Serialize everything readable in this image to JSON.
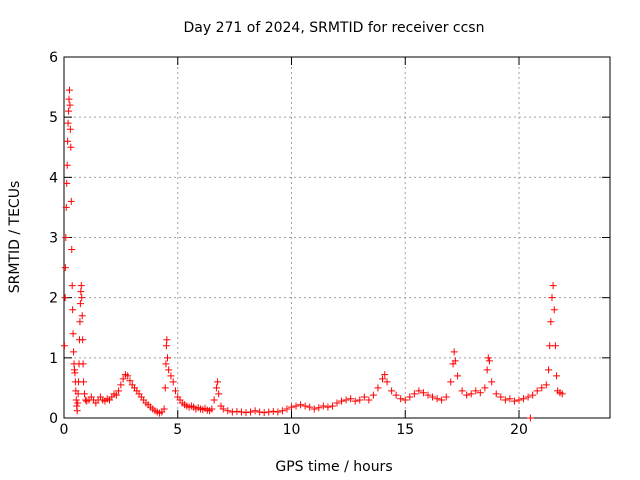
{
  "chart_data": {
    "type": "scatter",
    "title": "Day 271 of 2024, SRMTID for receiver ccsn",
    "xlabel": "GPS time / hours",
    "ylabel": "SRMTID / TECUs",
    "xlim": [
      0,
      24
    ],
    "ylim": [
      0,
      6
    ],
    "xticks": [
      0,
      5,
      10,
      15,
      20
    ],
    "yticks": [
      0,
      1,
      2,
      3,
      4,
      5,
      6
    ],
    "xtick_labels": [
      "0",
      "5",
      "10",
      "15",
      "20"
    ],
    "ytick_labels": [
      "0",
      "1",
      "2",
      "3",
      "4",
      "5",
      "6"
    ],
    "grid": true,
    "marker": "+",
    "series": [
      {
        "name": "SRMTID",
        "color": "#ff0000",
        "points": [
          [
            0.02,
            1.2
          ],
          [
            0.05,
            2.0
          ],
          [
            0.06,
            2.5
          ],
          [
            0.08,
            3.0
          ],
          [
            0.1,
            3.5
          ],
          [
            0.12,
            3.9
          ],
          [
            0.14,
            4.2
          ],
          [
            0.16,
            4.6
          ],
          [
            0.18,
            4.9
          ],
          [
            0.2,
            5.1
          ],
          [
            0.22,
            5.3
          ],
          [
            0.24,
            5.45
          ],
          [
            0.26,
            5.2
          ],
          [
            0.28,
            4.8
          ],
          [
            0.3,
            4.5
          ],
          [
            0.32,
            3.6
          ],
          [
            0.34,
            2.8
          ],
          [
            0.36,
            2.2
          ],
          [
            0.38,
            1.8
          ],
          [
            0.4,
            1.4
          ],
          [
            0.42,
            1.1
          ],
          [
            0.44,
            0.9
          ],
          [
            0.46,
            0.8
          ],
          [
            0.48,
            0.75
          ],
          [
            0.5,
            0.6
          ],
          [
            0.52,
            0.45
          ],
          [
            0.54,
            0.3
          ],
          [
            0.56,
            0.2
          ],
          [
            0.58,
            0.12
          ],
          [
            0.6,
            0.25
          ],
          [
            0.62,
            0.4
          ],
          [
            0.64,
            0.6
          ],
          [
            0.66,
            0.9
          ],
          [
            0.68,
            1.3
          ],
          [
            0.7,
            1.6
          ],
          [
            0.72,
            1.9
          ],
          [
            0.74,
            2.1
          ],
          [
            0.76,
            2.2
          ],
          [
            0.78,
            2.0
          ],
          [
            0.8,
            1.7
          ],
          [
            0.82,
            1.3
          ],
          [
            0.84,
            0.9
          ],
          [
            0.86,
            0.6
          ],
          [
            0.9,
            0.4
          ],
          [
            0.95,
            0.3
          ],
          [
            1.0,
            0.28
          ],
          [
            1.1,
            0.3
          ],
          [
            1.2,
            0.35
          ],
          [
            1.3,
            0.3
          ],
          [
            1.4,
            0.25
          ],
          [
            1.5,
            0.3
          ],
          [
            1.6,
            0.35
          ],
          [
            1.7,
            0.3
          ],
          [
            1.8,
            0.28
          ],
          [
            1.9,
            0.32
          ],
          [
            2.0,
            0.3
          ],
          [
            2.1,
            0.35
          ],
          [
            2.2,
            0.4
          ],
          [
            2.3,
            0.38
          ],
          [
            2.4,
            0.45
          ],
          [
            2.5,
            0.55
          ],
          [
            2.6,
            0.65
          ],
          [
            2.7,
            0.72
          ],
          [
            2.8,
            0.7
          ],
          [
            2.9,
            0.62
          ],
          [
            3.0,
            0.55
          ],
          [
            3.1,
            0.5
          ],
          [
            3.2,
            0.45
          ],
          [
            3.3,
            0.4
          ],
          [
            3.4,
            0.35
          ],
          [
            3.5,
            0.3
          ],
          [
            3.6,
            0.25
          ],
          [
            3.7,
            0.22
          ],
          [
            3.8,
            0.18
          ],
          [
            3.9,
            0.15
          ],
          [
            4.0,
            0.12
          ],
          [
            4.1,
            0.1
          ],
          [
            4.2,
            0.08
          ],
          [
            4.3,
            0.1
          ],
          [
            4.4,
            0.15
          ],
          [
            4.45,
            0.5
          ],
          [
            4.48,
            0.9
          ],
          [
            4.5,
            1.2
          ],
          [
            4.52,
            1.3
          ],
          [
            4.55,
            1.0
          ],
          [
            4.6,
            0.8
          ],
          [
            4.7,
            0.7
          ],
          [
            4.8,
            0.6
          ],
          [
            4.9,
            0.45
          ],
          [
            5.0,
            0.35
          ],
          [
            5.1,
            0.3
          ],
          [
            5.2,
            0.25
          ],
          [
            5.3,
            0.22
          ],
          [
            5.4,
            0.2
          ],
          [
            5.5,
            0.18
          ],
          [
            5.6,
            0.2
          ],
          [
            5.7,
            0.18
          ],
          [
            5.8,
            0.15
          ],
          [
            5.9,
            0.17
          ],
          [
            6.0,
            0.15
          ],
          [
            6.1,
            0.14
          ],
          [
            6.2,
            0.16
          ],
          [
            6.3,
            0.13
          ],
          [
            6.4,
            0.12
          ],
          [
            6.5,
            0.15
          ],
          [
            6.6,
            0.3
          ],
          [
            6.7,
            0.5
          ],
          [
            6.75,
            0.6
          ],
          [
            6.8,
            0.4
          ],
          [
            6.9,
            0.2
          ],
          [
            7.0,
            0.15
          ],
          [
            7.2,
            0.12
          ],
          [
            7.4,
            0.1
          ],
          [
            7.6,
            0.11
          ],
          [
            7.8,
            0.1
          ],
          [
            8.0,
            0.09
          ],
          [
            8.2,
            0.1
          ],
          [
            8.4,
            0.12
          ],
          [
            8.6,
            0.1
          ],
          [
            8.8,
            0.09
          ],
          [
            9.0,
            0.1
          ],
          [
            9.2,
            0.11
          ],
          [
            9.4,
            0.1
          ],
          [
            9.6,
            0.12
          ],
          [
            9.8,
            0.15
          ],
          [
            10.0,
            0.18
          ],
          [
            10.2,
            0.2
          ],
          [
            10.4,
            0.22
          ],
          [
            10.6,
            0.2
          ],
          [
            10.8,
            0.18
          ],
          [
            11.0,
            0.15
          ],
          [
            11.2,
            0.17
          ],
          [
            11.4,
            0.2
          ],
          [
            11.6,
            0.18
          ],
          [
            11.8,
            0.2
          ],
          [
            12.0,
            0.25
          ],
          [
            12.2,
            0.28
          ],
          [
            12.4,
            0.3
          ],
          [
            12.6,
            0.32
          ],
          [
            12.8,
            0.28
          ],
          [
            13.0,
            0.3
          ],
          [
            13.2,
            0.35
          ],
          [
            13.4,
            0.3
          ],
          [
            13.6,
            0.38
          ],
          [
            13.8,
            0.5
          ],
          [
            14.0,
            0.65
          ],
          [
            14.1,
            0.72
          ],
          [
            14.2,
            0.6
          ],
          [
            14.4,
            0.45
          ],
          [
            14.6,
            0.38
          ],
          [
            14.8,
            0.32
          ],
          [
            15.0,
            0.3
          ],
          [
            15.2,
            0.35
          ],
          [
            15.4,
            0.4
          ],
          [
            15.6,
            0.45
          ],
          [
            15.8,
            0.42
          ],
          [
            16.0,
            0.38
          ],
          [
            16.2,
            0.35
          ],
          [
            16.4,
            0.32
          ],
          [
            16.6,
            0.3
          ],
          [
            16.8,
            0.35
          ],
          [
            17.0,
            0.6
          ],
          [
            17.1,
            0.9
          ],
          [
            17.15,
            1.1
          ],
          [
            17.2,
            0.95
          ],
          [
            17.3,
            0.7
          ],
          [
            17.5,
            0.45
          ],
          [
            17.7,
            0.38
          ],
          [
            17.9,
            0.4
          ],
          [
            18.1,
            0.45
          ],
          [
            18.3,
            0.42
          ],
          [
            18.5,
            0.5
          ],
          [
            18.6,
            0.8
          ],
          [
            18.65,
            1.0
          ],
          [
            18.7,
            0.95
          ],
          [
            18.8,
            0.6
          ],
          [
            19.0,
            0.4
          ],
          [
            19.2,
            0.35
          ],
          [
            19.4,
            0.3
          ],
          [
            19.6,
            0.32
          ],
          [
            19.8,
            0.28
          ],
          [
            20.0,
            0.3
          ],
          [
            20.2,
            0.32
          ],
          [
            20.4,
            0.35
          ],
          [
            20.5,
            0.0
          ],
          [
            20.6,
            0.38
          ],
          [
            20.8,
            0.45
          ],
          [
            21.0,
            0.5
          ],
          [
            21.2,
            0.55
          ],
          [
            21.3,
            0.8
          ],
          [
            21.35,
            1.2
          ],
          [
            21.4,
            1.6
          ],
          [
            21.45,
            2.0
          ],
          [
            21.5,
            2.2
          ],
          [
            21.55,
            1.8
          ],
          [
            21.6,
            1.2
          ],
          [
            21.65,
            0.7
          ],
          [
            21.7,
            0.45
          ],
          [
            21.8,
            0.42
          ],
          [
            21.9,
            0.4
          ]
        ]
      }
    ]
  }
}
